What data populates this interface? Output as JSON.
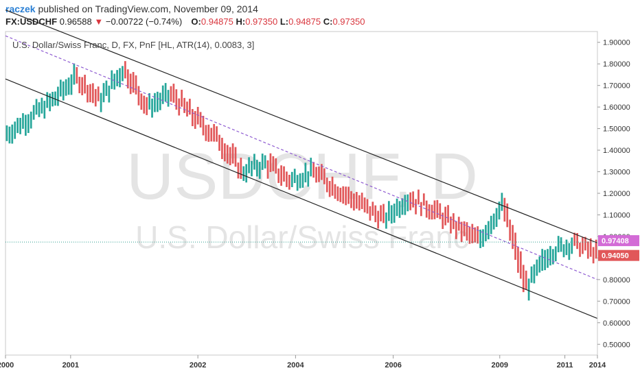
{
  "header": {
    "author": "raczek",
    "published_text": "published on TradingView.com, November 09, 2014",
    "symbol": "FX:USDCHF",
    "last": "0.96588",
    "change": "−0.00722 (−0.74%)",
    "o_label": "O:",
    "o_value": "0.94875",
    "h_label": "H:",
    "h_value": "0.97350",
    "l_label": "L:",
    "l_value": "0.94875",
    "c_label": "C:",
    "c_value": "0.97350"
  },
  "legend": "U.S. Dollar/Swiss Franc, D, FX, PnF [HL, ATR(14), 0.0083, 3]",
  "watermark": {
    "symbol": "USDCHF, D",
    "name": "U.S. Dollar/Swiss Franc"
  },
  "price_tags": [
    {
      "value": "0.97408",
      "color": "#d36bd6",
      "price": 0.97408
    },
    {
      "value": "0.94050",
      "color": "#e15759",
      "price": 0.9405
    }
  ],
  "colors": {
    "up": "#26a69a",
    "down": "#e15759",
    "channel": "#222222",
    "midline": "#8e5bd1",
    "current_line": "#2a9d8f"
  },
  "chart_data": {
    "type": "bar",
    "y_ticks": [
      "1.90000",
      "1.80000",
      "1.70000",
      "1.60000",
      "1.50000",
      "1.40000",
      "1.30000",
      "1.20000",
      "1.10000",
      "1.00000",
      "0.90000",
      "0.80000",
      "0.70000",
      "0.60000",
      "0.50000"
    ],
    "ylim": [
      0.45,
      1.95
    ],
    "x_ticks": [
      "2000",
      "2001",
      "2002",
      "2004",
      "2006",
      "2009",
      "2011",
      "2014"
    ],
    "x_tick_positions": [
      0.0,
      0.11,
      0.325,
      0.49,
      0.655,
      0.835,
      0.945,
      1.0
    ],
    "series": [
      {
        "name": "",
        "x": [
          0,
          0.04,
          0.08,
          0.12,
          0.16,
          0.2,
          0.24,
          0.28,
          0.32,
          0.36,
          0.4,
          0.44,
          0.48,
          0.52,
          0.56,
          0.6,
          0.64,
          0.68,
          0.72,
          0.76,
          0.8,
          0.84,
          0.88,
          0.92,
          0.96,
          1.0
        ],
        "values": [
          1.47,
          1.55,
          1.63,
          1.74,
          1.63,
          1.78,
          1.6,
          1.66,
          1.55,
          1.45,
          1.3,
          1.34,
          1.26,
          1.3,
          1.22,
          1.15,
          1.08,
          1.18,
          1.13,
          1.05,
          0.98,
          1.15,
          0.76,
          0.93,
          0.97,
          0.92
        ]
      }
    ],
    "channel_upper": {
      "start": 2.05,
      "end": 0.97
    },
    "channel_mid": {
      "start": 1.93,
      "end": 0.8
    },
    "channel_lower": {
      "start": 1.73,
      "end": 0.62
    },
    "current_price": 0.97408
  }
}
